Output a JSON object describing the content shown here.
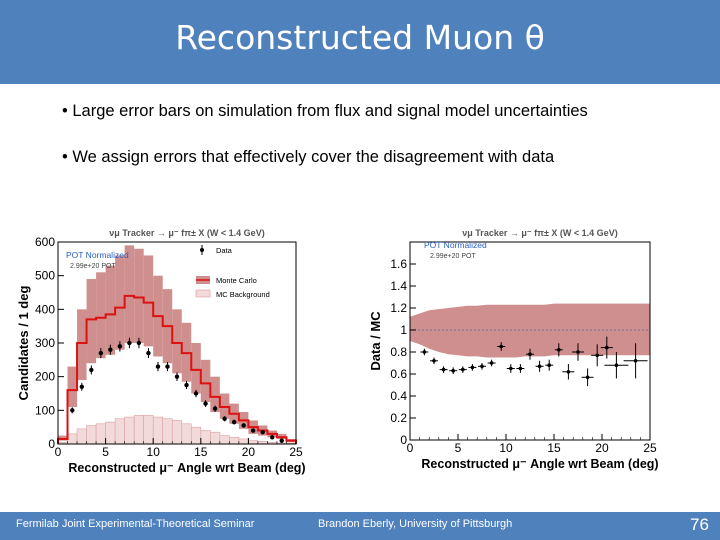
{
  "slide": {
    "title": "Reconstructed Muon θ",
    "bullets": [
      "• Large error bars on simulation from  flux and signal model uncertainties",
      "• We assign errors that effectively cover the disagreement with data"
    ],
    "footer_left": "Fermilab Joint Experimental-Theoretical Seminar",
    "footer_center": "Brandon Eberly, University of Pittsburgh",
    "page_number": "76"
  },
  "colors": {
    "header": "#4f81bd",
    "mc_band": "#cf8f8f",
    "mc_line": "#dd1111",
    "background_mc": "#d9a0a0",
    "data_points": "#000000"
  },
  "chart_data": [
    {
      "type": "histogram",
      "title": "νμ Tracker → μ⁻ fπ± X (W < 1.4 GeV)",
      "xlabel": "Reconstructed μ⁻ Angle wrt Beam (deg)",
      "ylabel": "Candidates / 1 deg",
      "xlim": [
        0,
        25
      ],
      "ylim": [
        0,
        600
      ],
      "xticks": [
        0,
        5,
        10,
        15,
        20,
        25
      ],
      "yticks": [
        0,
        100,
        200,
        300,
        400,
        500,
        600
      ],
      "annotations": [
        "POT Normalized",
        "2.99e+20 POT"
      ],
      "legend": {
        "position": "top-right",
        "entries": [
          "Data",
          "Monte Carlo",
          "MC Background"
        ]
      },
      "bin_edges": [
        0,
        1,
        2,
        3,
        4,
        5,
        6,
        7,
        8,
        9,
        10,
        11,
        12,
        13,
        14,
        15,
        16,
        17,
        18,
        19,
        20,
        21,
        22,
        23,
        24,
        25
      ],
      "series": [
        {
          "name": "Monte Carlo",
          "values": [
            15,
            160,
            300,
            370,
            375,
            385,
            405,
            440,
            435,
            420,
            380,
            350,
            300,
            270,
            220,
            180,
            140,
            110,
            90,
            70,
            50,
            40,
            30,
            20,
            10
          ],
          "band_low": [
            10,
            110,
            190,
            240,
            255,
            265,
            280,
            300,
            300,
            290,
            260,
            240,
            210,
            185,
            150,
            125,
            95,
            75,
            60,
            45,
            30,
            25,
            20,
            15,
            5
          ],
          "band_high": [
            25,
            230,
            400,
            490,
            510,
            530,
            560,
            590,
            580,
            560,
            500,
            460,
            400,
            360,
            300,
            250,
            200,
            150,
            120,
            95,
            70,
            55,
            40,
            30,
            15
          ]
        },
        {
          "name": "MC Background",
          "values": [
            5,
            30,
            45,
            55,
            60,
            65,
            75,
            80,
            85,
            85,
            80,
            75,
            70,
            60,
            50,
            40,
            35,
            25,
            20,
            15,
            10,
            8,
            5,
            3,
            2
          ]
        },
        {
          "name": "Data",
          "x": [
            1.5,
            2.5,
            3.5,
            4.5,
            5.5,
            6.5,
            7.5,
            8.5,
            9.5,
            10.5,
            11.5,
            12.5,
            13.5,
            14.5,
            15.5,
            16.5,
            17.5,
            18.5,
            19.5,
            20.5,
            21.5,
            22.5,
            23.5
          ],
          "y": [
            100,
            170,
            220,
            270,
            280,
            290,
            300,
            300,
            270,
            230,
            230,
            200,
            175,
            150,
            120,
            105,
            75,
            65,
            55,
            40,
            35,
            20,
            10
          ]
        }
      ]
    },
    {
      "type": "ratio",
      "title": "νμ Tracker → μ⁻ fπ± X (W < 1.4 GeV)",
      "xlabel": "Reconstructed μ⁻ Angle wrt Beam (deg)",
      "ylabel": "Data / MC",
      "xlim": [
        0,
        25
      ],
      "ylim": [
        0,
        1.8
      ],
      "xticks": [
        0,
        5,
        10,
        15,
        20,
        25
      ],
      "yticks": [
        0,
        0.2,
        0.4,
        0.6,
        0.8,
        1,
        1.2,
        1.4,
        1.6
      ],
      "annotations": [
        "POT Normalized",
        "2.99e+20 POT"
      ],
      "reference_line": 1,
      "series": [
        {
          "name": "MC uncertainty band",
          "x": [
            0,
            1,
            2,
            3,
            4,
            5,
            6,
            7,
            8,
            9,
            10,
            11,
            12,
            13,
            14,
            15,
            16,
            17,
            18,
            19,
            20,
            21,
            22,
            23,
            24,
            25
          ],
          "low": [
            0.9,
            0.87,
            0.83,
            0.8,
            0.78,
            0.77,
            0.76,
            0.76,
            0.75,
            0.75,
            0.75,
            0.75,
            0.76,
            0.76,
            0.76,
            0.77,
            0.77,
            0.77,
            0.77,
            0.77,
            0.77,
            0.77,
            0.77,
            0.77,
            0.77,
            0.77
          ],
          "high": [
            1.12,
            1.15,
            1.18,
            1.19,
            1.2,
            1.21,
            1.22,
            1.22,
            1.23,
            1.23,
            1.23,
            1.23,
            1.23,
            1.23,
            1.23,
            1.24,
            1.24,
            1.24,
            1.24,
            1.24,
            1.24,
            1.24,
            1.24,
            1.24,
            1.24,
            1.24
          ]
        },
        {
          "name": "Data / MC",
          "x": [
            1.5,
            2.5,
            3.5,
            4.5,
            5.5,
            6.5,
            7.5,
            8.5,
            9.5,
            10.5,
            11.5,
            12.5,
            13.5,
            14.5,
            15.5,
            16.5,
            17.5,
            18.5,
            19.5,
            20.5,
            21.5,
            23.5
          ],
          "y": [
            0.8,
            0.72,
            0.64,
            0.63,
            0.64,
            0.66,
            0.67,
            0.7,
            0.85,
            0.65,
            0.65,
            0.78,
            0.67,
            0.68,
            0.82,
            0.62,
            0.8,
            0.57,
            0.77,
            0.84,
            0.68,
            0.72
          ],
          "yerr": [
            0.03,
            0.03,
            0.03,
            0.03,
            0.03,
            0.03,
            0.03,
            0.03,
            0.04,
            0.04,
            0.04,
            0.05,
            0.05,
            0.05,
            0.06,
            0.07,
            0.08,
            0.08,
            0.1,
            0.1,
            0.12,
            0.16
          ]
        }
      ]
    }
  ]
}
